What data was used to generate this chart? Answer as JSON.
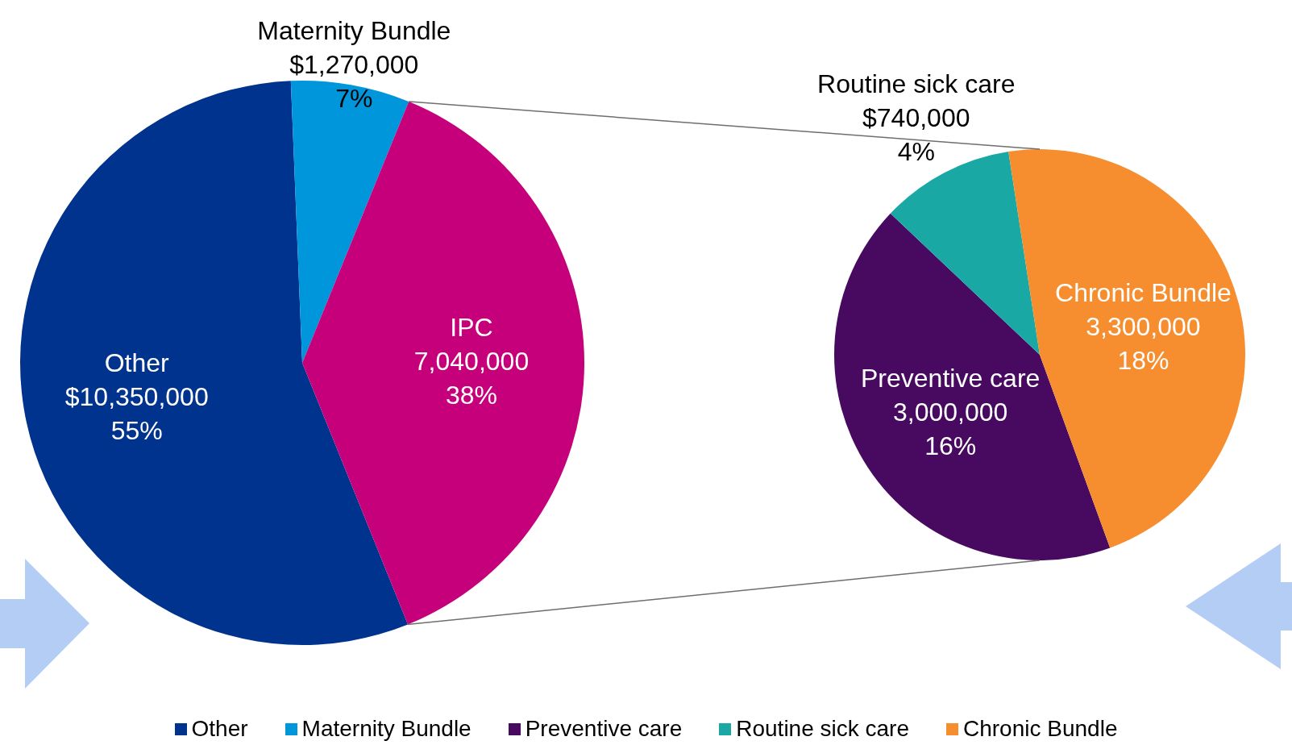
{
  "chart_data": [
    {
      "type": "pie",
      "categories": [
        "Other",
        "Maternity Bundle",
        "IPC"
      ],
      "values": [
        10350000,
        1270000,
        7040000
      ],
      "colors": [
        "#00338d",
        "#0096db",
        "#c5007a"
      ],
      "value_labels": [
        "$10,350,000\n55%",
        "$1,270,000\n7%",
        "7,040,000\n38%"
      ],
      "legend": "bottom"
    },
    {
      "type": "pie",
      "categories": [
        "Preventive care",
        "Routine sick care",
        "Chronic Bundle"
      ],
      "values": [
        3000000,
        740000,
        3300000
      ],
      "colors": [
        "#470a60",
        "#1aa8a5",
        "#f68d2e"
      ],
      "value_labels": [
        "3,000,000\n16%",
        "$740,000\n4%",
        "3,300,000\n18%"
      ],
      "legend": "bottom"
    }
  ]
}
